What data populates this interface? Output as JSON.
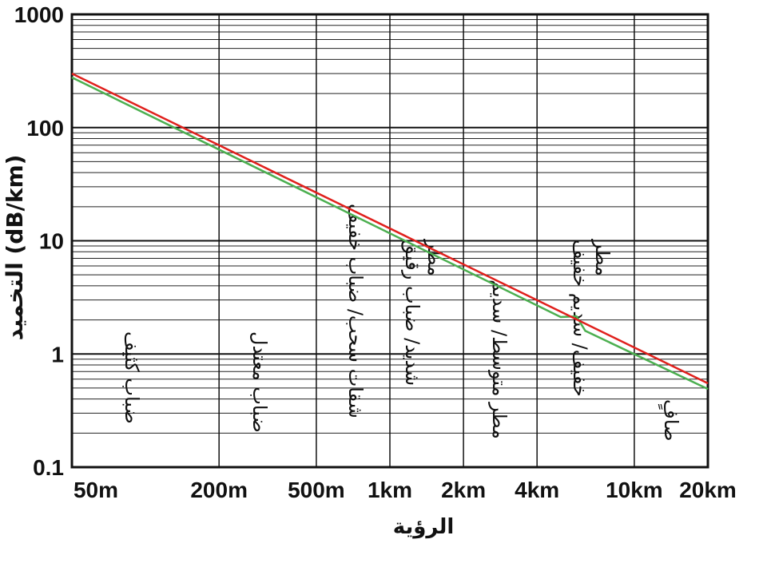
{
  "chart_data": {
    "type": "line",
    "x_label": "الرؤية",
    "y_label": "التخميد (dB/km)",
    "xscale": "log",
    "yscale": "log",
    "grid": true,
    "minor_grid": true,
    "xlim": [
      50,
      20000
    ],
    "ylim": [
      0.1,
      1000
    ],
    "xticks": [
      {
        "value": 50,
        "label": "50m"
      },
      {
        "value": 200,
        "label": "200m"
      },
      {
        "value": 500,
        "label": "500m"
      },
      {
        "value": 1000,
        "label": "1km"
      },
      {
        "value": 2000,
        "label": "2km"
      },
      {
        "value": 4000,
        "label": "4km"
      },
      {
        "value": 10000,
        "label": "10km"
      },
      {
        "value": 20000,
        "label": "20km"
      }
    ],
    "yticks": [
      0.1,
      1,
      10,
      100,
      1000
    ],
    "series": [
      {
        "color": "#e0201c",
        "x": [
          50,
          20000
        ],
        "values": [
          300,
          0.55
        ]
      },
      {
        "color": "#4caf50",
        "x": [
          50,
          5000,
          5800,
          6300,
          20000
        ],
        "values": [
          277,
          2.12,
          2.15,
          1.6,
          0.49
        ]
      }
    ],
    "annotations": [
      {
        "lines": [
          "ضباب كثيف"
        ]
      },
      {
        "lines": [
          "ضباب معتدل"
        ]
      },
      {
        "lines": [
          "شقات سحب/ ضباب خفيف"
        ]
      },
      {
        "lines": [
          "مطر",
          "شديد/ ضباب رقيق"
        ]
      },
      {
        "lines": [
          "مطر متوسط/ سديم"
        ]
      },
      {
        "lines": [
          "مطر",
          "خفيف/ سديم خفيف"
        ]
      },
      {
        "lines": [
          "صافٍ"
        ]
      }
    ]
  }
}
